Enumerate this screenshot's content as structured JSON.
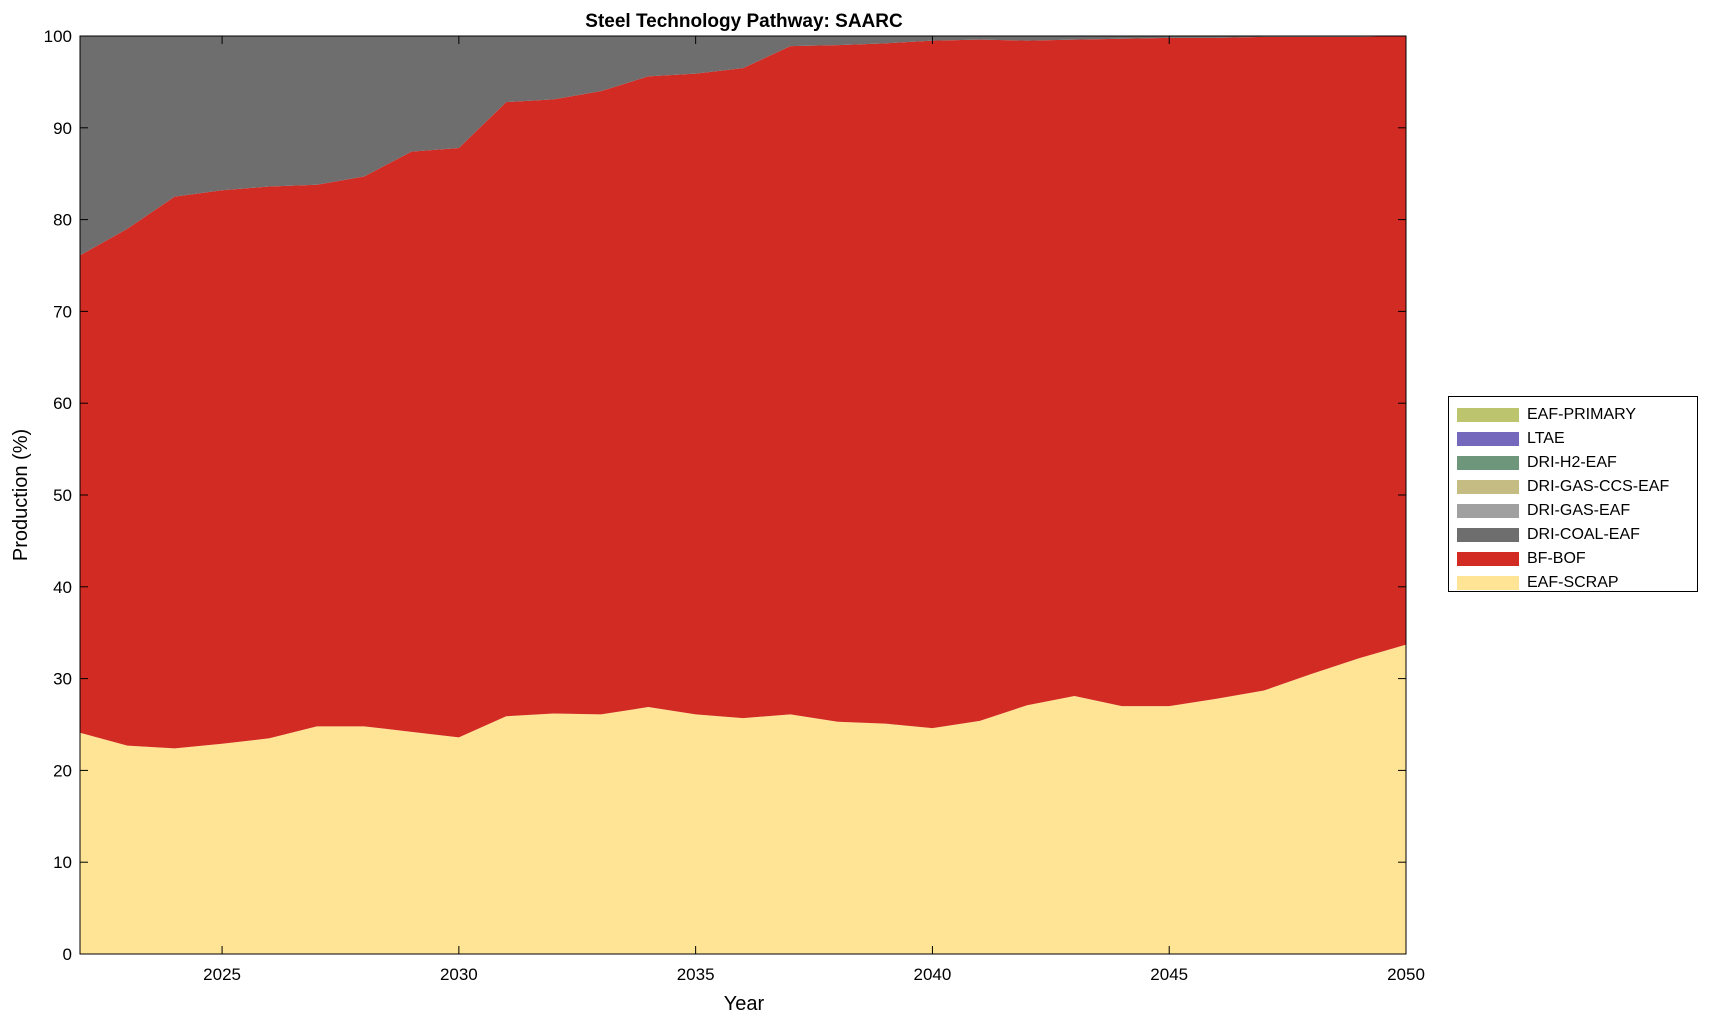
{
  "chart_data": {
    "type": "area",
    "stacked": true,
    "title": "Steel Technology Pathway: SAARC",
    "xlabel": "Year",
    "ylabel": "Production (%)",
    "xlim": [
      2022,
      2050
    ],
    "ylim": [
      0,
      100
    ],
    "xticks": [
      2025,
      2030,
      2035,
      2040,
      2045,
      2050
    ],
    "yticks": [
      0,
      10,
      20,
      30,
      40,
      50,
      60,
      70,
      80,
      90,
      100
    ],
    "grid": false,
    "legend_position": "right",
    "x": [
      2022,
      2023,
      2024,
      2025,
      2026,
      2027,
      2028,
      2029,
      2030,
      2031,
      2032,
      2033,
      2034,
      2035,
      2036,
      2037,
      2038,
      2039,
      2040,
      2041,
      2042,
      2043,
      2044,
      2045,
      2046,
      2047,
      2048,
      2049,
      2050
    ],
    "series": [
      {
        "name": "EAF-SCRAP",
        "color": "#FFE496",
        "values": [
          24.1,
          22.7,
          22.4,
          22.9,
          23.5,
          24.8,
          24.8,
          24.2,
          23.6,
          25.9,
          26.2,
          26.1,
          26.9,
          26.1,
          25.7,
          26.1,
          25.3,
          25.1,
          24.6,
          25.4,
          27.1,
          28.1,
          27.0,
          27.0,
          27.8,
          28.7,
          30.5,
          32.2,
          33.7
        ]
      },
      {
        "name": "BF-BOF",
        "color": "#D22B24",
        "values": [
          52.0,
          56.3,
          60.1,
          60.3,
          60.1,
          59.0,
          59.9,
          63.2,
          64.2,
          66.9,
          66.9,
          67.9,
          68.7,
          69.8,
          70.8,
          72.8,
          73.7,
          74.1,
          74.9,
          74.2,
          72.4,
          71.5,
          72.7,
          72.8,
          72.0,
          71.2,
          69.4,
          67.7,
          66.3
        ]
      },
      {
        "name": "DRI-COAL-EAF",
        "color": "#6E6E6E",
        "values": [
          23.9,
          21.0,
          17.5,
          16.8,
          16.4,
          16.2,
          15.3,
          12.6,
          12.2,
          7.2,
          6.9,
          6.0,
          4.4,
          4.1,
          3.5,
          1.1,
          1.0,
          0.8,
          0.5,
          0.4,
          0.5,
          0.4,
          0.3,
          0.2,
          0.2,
          0.1,
          0.1,
          0.1,
          0.0
        ]
      },
      {
        "name": "DRI-GAS-EAF",
        "color": "#A0A0A0",
        "values": [
          0,
          0,
          0,
          0,
          0,
          0,
          0,
          0,
          0,
          0,
          0,
          0,
          0,
          0,
          0,
          0,
          0,
          0,
          0,
          0,
          0,
          0,
          0,
          0,
          0,
          0,
          0,
          0,
          0
        ]
      },
      {
        "name": "DRI-GAS-CCS-EAF",
        "color": "#C4BC82",
        "values": [
          0,
          0,
          0,
          0,
          0,
          0,
          0,
          0,
          0,
          0,
          0,
          0,
          0,
          0,
          0,
          0,
          0,
          0,
          0,
          0,
          0,
          0,
          0,
          0,
          0,
          0,
          0,
          0,
          0
        ]
      },
      {
        "name": "DRI-H2-EAF",
        "color": "#6E967A",
        "values": [
          0,
          0,
          0,
          0,
          0,
          0,
          0,
          0,
          0,
          0,
          0,
          0,
          0,
          0,
          0,
          0,
          0,
          0,
          0,
          0,
          0,
          0,
          0,
          0,
          0,
          0,
          0,
          0,
          0
        ]
      },
      {
        "name": "LTAE",
        "color": "#7468BC",
        "values": [
          0,
          0,
          0,
          0,
          0,
          0,
          0,
          0,
          0,
          0,
          0,
          0,
          0,
          0,
          0,
          0,
          0,
          0,
          0,
          0,
          0,
          0,
          0,
          0,
          0,
          0,
          0,
          0,
          0
        ]
      },
      {
        "name": "EAF-PRIMARY",
        "color": "#BCC46E",
        "values": [
          0,
          0,
          0,
          0,
          0,
          0,
          0,
          0,
          0,
          0,
          0,
          0,
          0,
          0,
          0,
          0,
          0,
          0,
          0,
          0,
          0,
          0,
          0,
          0,
          0,
          0,
          0,
          0,
          0
        ]
      }
    ]
  }
}
